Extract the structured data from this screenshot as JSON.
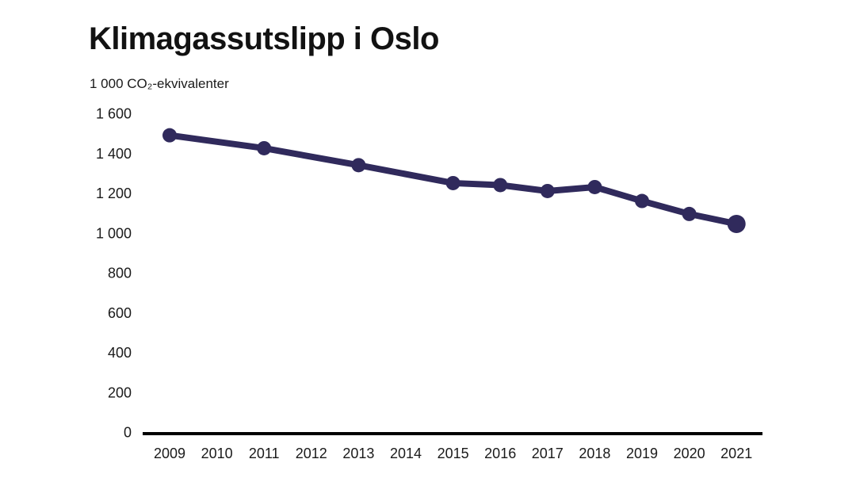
{
  "page": {
    "background_color": "#ffffff"
  },
  "chart_data": {
    "type": "line",
    "title": "Klimagassutslipp i Oslo",
    "ylabel": "1 000 CO₂-ekvivalenter",
    "xlabel": "",
    "series": [
      {
        "name": "Klimagassutslipp i Oslo (1 000 CO₂-ekvivalenter)",
        "x": [
          2009,
          2011,
          2013,
          2015,
          2016,
          2017,
          2018,
          2019,
          2020,
          2021
        ],
        "values": [
          1490,
          1425,
          1340,
          1250,
          1240,
          1210,
          1230,
          1160,
          1095,
          1045
        ]
      }
    ],
    "xtick_labels": [
      "2009",
      "2010",
      "2011",
      "2012",
      "2013",
      "2014",
      "2015",
      "2016",
      "2017",
      "2018",
      "2019",
      "2020",
      "2021"
    ],
    "ytick_values": [
      0,
      200,
      400,
      600,
      800,
      1000,
      1200,
      1400,
      1600
    ],
    "ytick_labels": [
      "0",
      "200",
      "400",
      "600",
      "800",
      "1 000",
      "1 200",
      "1 400",
      "1 600"
    ],
    "xlim": [
      2009,
      2021
    ],
    "ylim": [
      0,
      1600
    ],
    "grid": false,
    "legend": "none",
    "line_color": "#302a5c",
    "axis_color": "#000000",
    "label_color": "#1a1a1a"
  }
}
